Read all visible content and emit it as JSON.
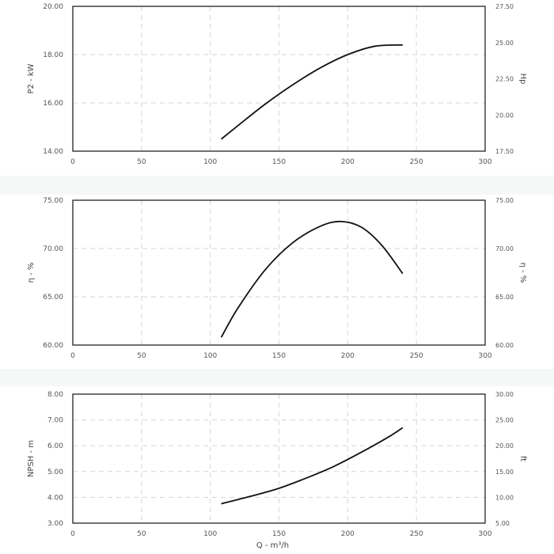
{
  "chart_data": [
    {
      "type": "line",
      "xlabel": "",
      "ylabel": "P2 - kW",
      "y2label": "Hp",
      "xlim": [
        0,
        300
      ],
      "ylim": [
        14,
        20
      ],
      "y2lim": [
        17.5,
        27.5
      ],
      "xticks": [
        "0",
        "50",
        "100",
        "150",
        "200",
        "250",
        "300"
      ],
      "yticks": [
        "14.00",
        "16.00",
        "18.00",
        "20.00"
      ],
      "y2ticks": [
        "17.50",
        "20.00",
        "22.50",
        "25.00",
        "27.50"
      ],
      "grid": true,
      "series": [
        {
          "x": [
            108,
            120,
            140,
            160,
            180,
            200,
            220,
            240
          ],
          "y": [
            14.5,
            15.05,
            15.95,
            16.75,
            17.45,
            18.0,
            18.35,
            18.4
          ]
        }
      ]
    },
    {
      "type": "line",
      "xlabel": "",
      "ylabel": "η - %",
      "y2label": "η - %",
      "xlim": [
        0,
        300
      ],
      "ylim": [
        60,
        75
      ],
      "y2lim": [
        60,
        75
      ],
      "xticks": [
        "0",
        "50",
        "100",
        "150",
        "200",
        "250",
        "300"
      ],
      "yticks": [
        "60.00",
        "65.00",
        "70.00",
        "75.00"
      ],
      "y2ticks": [
        "60.00",
        "65.00",
        "70.00",
        "75.00"
      ],
      "grid": true,
      "series": [
        {
          "x": [
            108,
            120,
            140,
            160,
            180,
            195,
            210,
            225,
            240
          ],
          "y": [
            60.8,
            63.8,
            67.8,
            70.6,
            72.3,
            72.8,
            72.2,
            70.3,
            67.4
          ]
        }
      ]
    },
    {
      "type": "line",
      "xlabel": "Q - m³/h",
      "ylabel": "NPSH - m",
      "y2label": "ft",
      "xlim": [
        0,
        300
      ],
      "ylim": [
        3,
        8
      ],
      "y2lim": [
        5,
        30
      ],
      "xticks": [
        "0",
        "50",
        "100",
        "150",
        "200",
        "250",
        "300"
      ],
      "yticks": [
        "3.00",
        "4.00",
        "5.00",
        "6.00",
        "7.00",
        "8.00"
      ],
      "y2ticks": [
        "5.00",
        "10.00",
        "15.00",
        "20.00",
        "25.00",
        "30.00"
      ],
      "grid": true,
      "series": [
        {
          "x": [
            108,
            130,
            150,
            170,
            190,
            210,
            230,
            240
          ],
          "y": [
            3.75,
            4.05,
            4.35,
            4.75,
            5.2,
            5.75,
            6.35,
            6.7
          ]
        }
      ]
    }
  ],
  "colors": {
    "curve": "#111111",
    "frame": "#222222",
    "grid": "#d6d6d6",
    "text": "#555555",
    "band": "#f6f7f7"
  }
}
